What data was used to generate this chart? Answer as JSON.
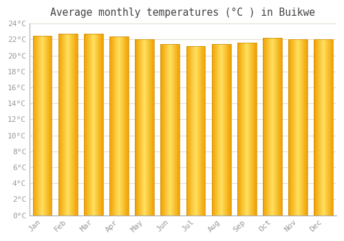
{
  "title": "Average monthly temperatures (°C ) in Buikwe",
  "months": [
    "Jan",
    "Feb",
    "Mar",
    "Apr",
    "May",
    "Jun",
    "Jul",
    "Aug",
    "Sep",
    "Oct",
    "Nov",
    "Dec"
  ],
  "values": [
    22.5,
    22.7,
    22.7,
    22.4,
    22.0,
    21.4,
    21.2,
    21.4,
    21.6,
    22.2,
    22.0,
    22.0
  ],
  "ylim": [
    0,
    24
  ],
  "yticks": [
    0,
    2,
    4,
    6,
    8,
    10,
    12,
    14,
    16,
    18,
    20,
    22,
    24
  ],
  "ytick_labels": [
    "0°C",
    "2°C",
    "4°C",
    "6°C",
    "8°C",
    "10°C",
    "12°C",
    "14°C",
    "16°C",
    "18°C",
    "20°C",
    "22°C",
    "24°C"
  ],
  "bar_color_center": "#FFDD44",
  "bar_color_edge": "#F0A000",
  "bar_edge_color": "#CC8800",
  "background_color": "#FFFFFF",
  "grid_color": "#E0DDD0",
  "title_fontsize": 10.5,
  "tick_fontsize": 8,
  "title_color": "#444444",
  "tick_color": "#999999",
  "font_family": "monospace",
  "bar_width": 0.75
}
